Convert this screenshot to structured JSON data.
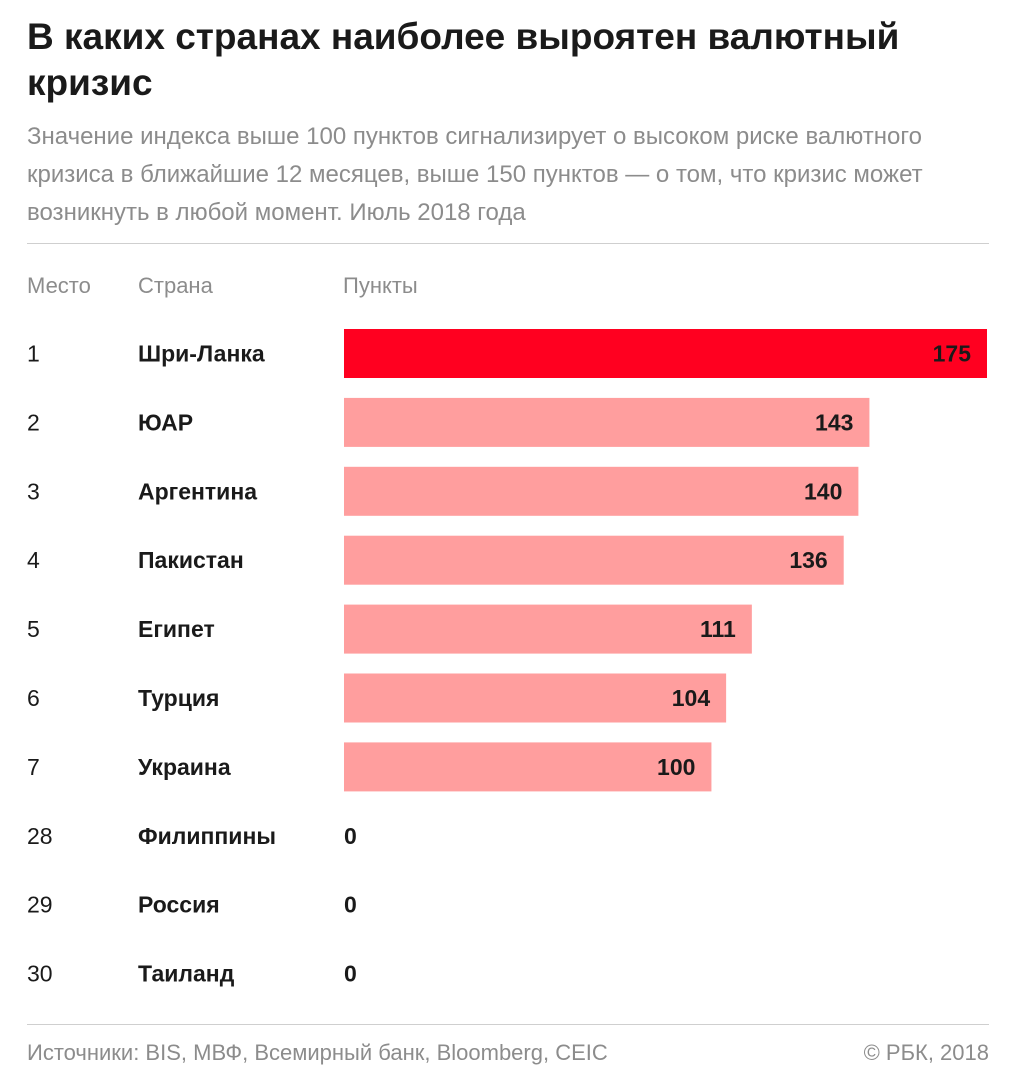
{
  "header": {
    "title": "В каких странах наиболее выроятен валютный кризис",
    "subtitle": "Значение индекса выше 100 пунктов сигнализирует о высоком риске валютного кризиса в ближайшие 12 месяцев, выше 150 пунктов — о том, что кризис может возникнуть в любой момент. Июль 2018 года"
  },
  "columns": {
    "rank": "Место",
    "country": "Страна",
    "points": "Пункты"
  },
  "chart_data": {
    "type": "bar",
    "orientation": "horizontal",
    "ranks": [
      "1",
      "2",
      "3",
      "4",
      "5",
      "6",
      "7",
      "28",
      "29",
      "30"
    ],
    "categories": [
      "Шри-Ланка",
      "ЮАР",
      "Аргентина",
      "Пакистан",
      "Египет",
      "Турция",
      "Украина",
      "Филиппины",
      "Россия",
      "Таиланд"
    ],
    "values": [
      175,
      143,
      140,
      136,
      111,
      104,
      100,
      0,
      0,
      0
    ],
    "value_labels": [
      "175",
      "143",
      "140",
      "136",
      "111",
      "104",
      "100",
      "0",
      "0",
      "0"
    ],
    "xlim": [
      0,
      175
    ],
    "highlight_color": "#ff0020",
    "bar_color": "#ff9e9e",
    "grid": false,
    "legend": "none"
  },
  "footer": {
    "source": "Источники: BIS, МВФ, Всемирный банк, Bloomberg, CEIC",
    "copyright": "© РБК, 2018"
  }
}
